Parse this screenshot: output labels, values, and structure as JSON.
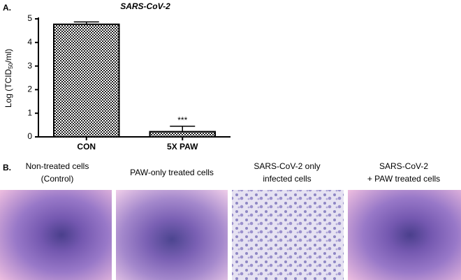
{
  "panel_a": "A.",
  "panel_b": "B.",
  "chart_data": {
    "type": "bar",
    "title": "SARS-CoV-2",
    "y_label": [
      "Log (TCID",
      "50",
      "/ml)"
    ],
    "categories": [
      "CON",
      "5X PAW"
    ],
    "series": [
      {
        "values": [
          4.77,
          0.22
        ],
        "errors": [
          0.1,
          0.23
        ],
        "color": "#000000"
      }
    ],
    "annotation": "***",
    "ylim": [
      0,
      5
    ],
    "yticks": [
      0,
      1,
      2,
      3,
      4,
      5
    ]
  },
  "images": [
    {
      "caption": [
        "Non-treated cells",
        "(Control)"
      ]
    },
    {
      "caption": [
        "PAW-only treated cells"
      ]
    },
    {
      "caption": [
        "SARS-CoV-2 only",
        "infected cells"
      ]
    },
    {
      "caption": [
        "SARS-CoV-2",
        "+ PAW treated cells"
      ]
    }
  ]
}
